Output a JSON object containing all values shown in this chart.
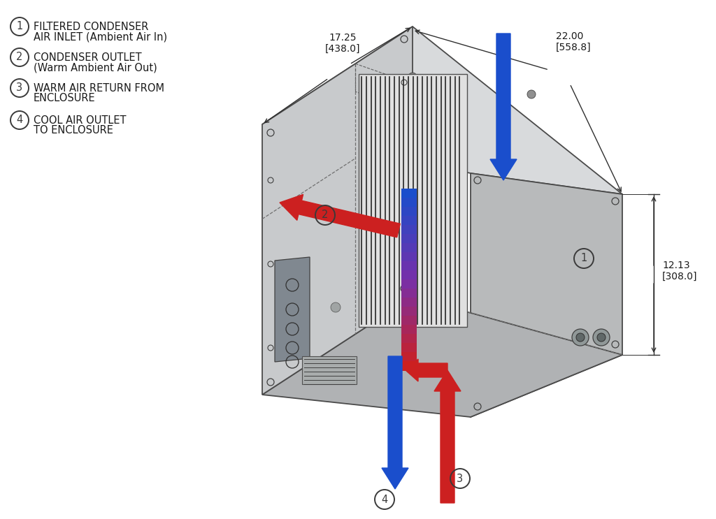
{
  "bg_color": "#ffffff",
  "legend_items": [
    {
      "num": "1",
      "text_line1": "FILTERED CONDENSER",
      "text_line2": "AIR INLET (Ambient Air In)"
    },
    {
      "num": "2",
      "text_line1": "CONDENSER OUTLET",
      "text_line2": "(Warm Ambient Air Out)"
    },
    {
      "num": "3",
      "text_line1": "WARM AIR RETURN FROM",
      "text_line2": "ENCLOSURE"
    },
    {
      "num": "4",
      "text_line1": "COOL AIR OUTLET",
      "text_line2": "TO ENCLOSURE"
    }
  ],
  "dim_17_text": "17.25\n[438.0]",
  "dim_22_text": "22.00\n[558.8]",
  "dim_12_text": "12.13\n[308.0]",
  "face_left": "#c8cacc",
  "face_top": "#d8dadc",
  "face_right": "#b8babb",
  "face_front_left": "#c0c2c4",
  "edge_col": "#4a4a4a",
  "arrow_red": "#cc2020",
  "arrow_blue": "#1a4ecc",
  "dim_col": "#303030",
  "bolt_col": "#404040"
}
